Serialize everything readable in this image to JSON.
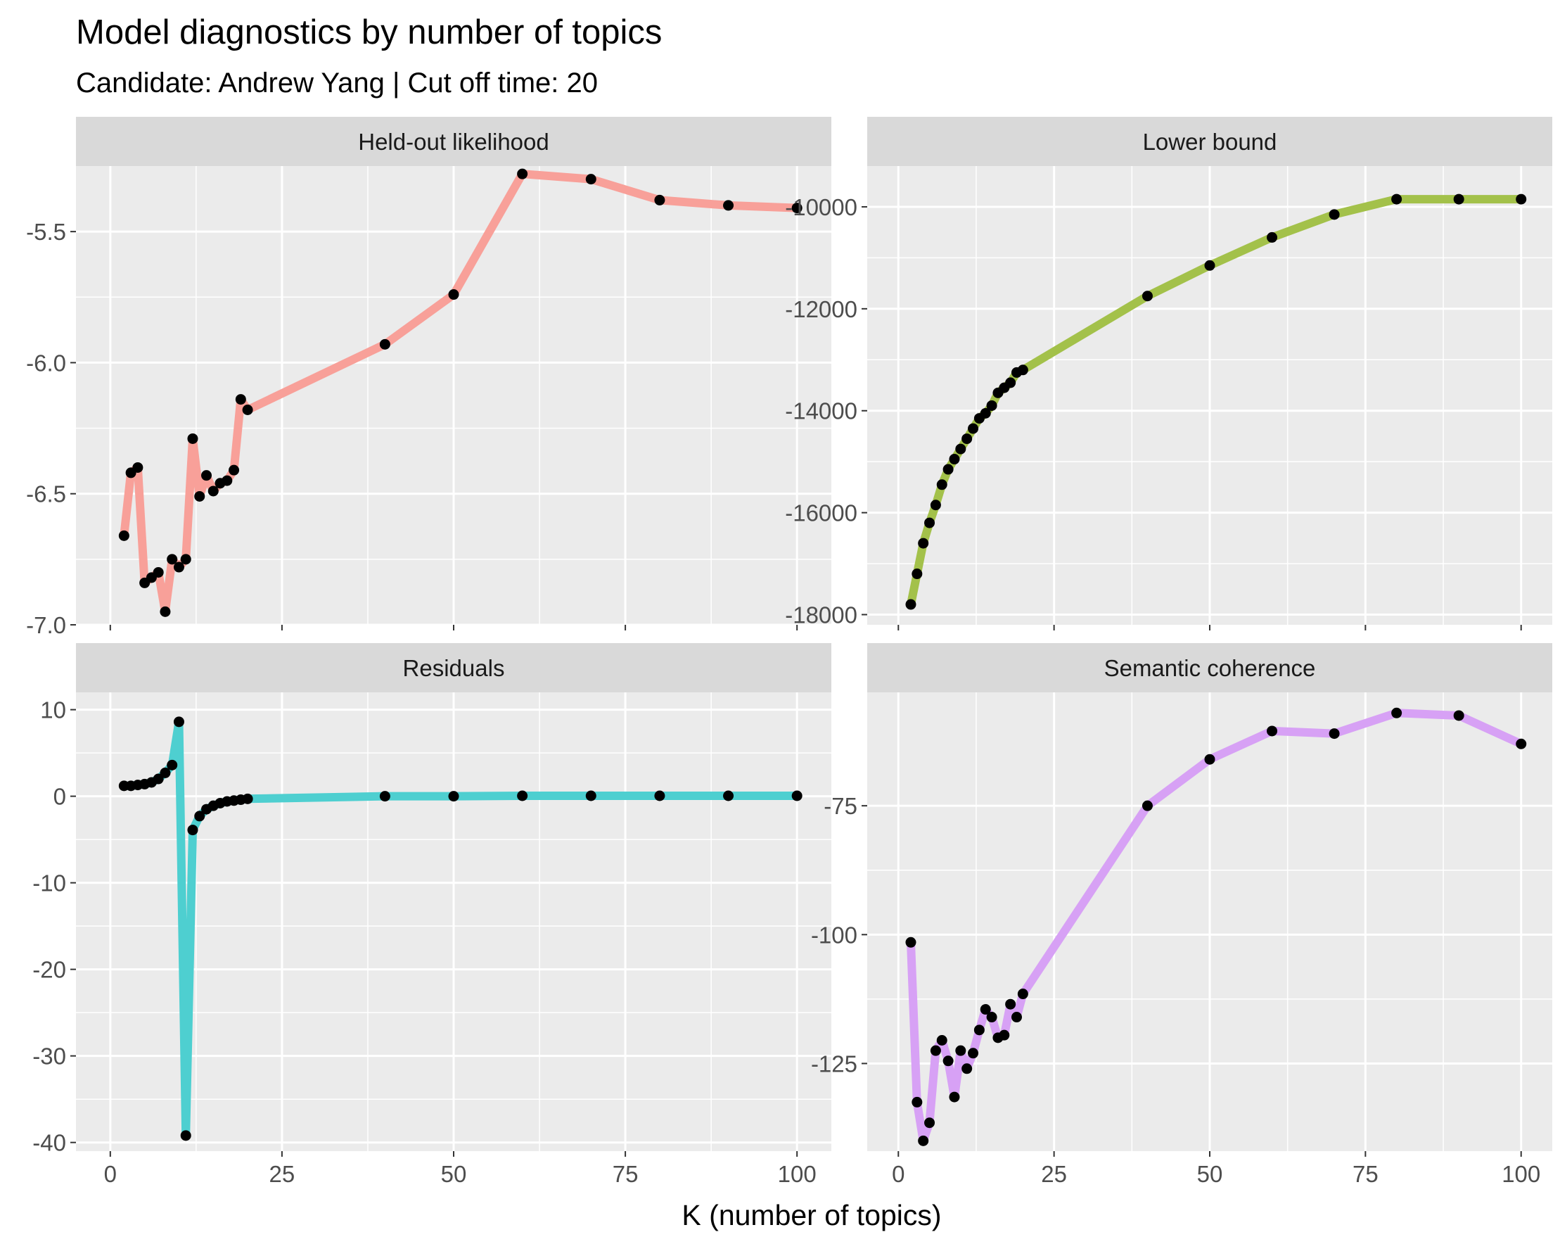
{
  "chart_data": {
    "type": "line",
    "title": "Model diagnostics by number of topics",
    "subtitle": "Candidate: Andrew Yang | Cut off time: 20",
    "xlabel": "K (number of topics)",
    "ylabel": "",
    "facet_grid": true,
    "legend": "none",
    "colors": {
      "background_panel": "#ebebeb",
      "strip": "#d9d9d9",
      "grid": "#ffffff",
      "points": "#000000"
    },
    "x_axis": {
      "lim": [
        0,
        100
      ],
      "ticks": [
        0,
        25,
        50,
        75,
        100
      ]
    },
    "panels": [
      {
        "name": "Held-out likelihood",
        "color": "#f8a099",
        "ylim": [
          -7.0,
          -5.25
        ],
        "yticks": [
          -5.5,
          -6.0,
          -6.5,
          -7.0
        ],
        "ytick_labels": [
          "-5.5",
          "-6.0",
          "-6.5",
          "-7.0"
        ],
        "x": [
          2,
          3,
          4,
          5,
          6,
          7,
          8,
          9,
          10,
          11,
          12,
          13,
          14,
          15,
          16,
          17,
          18,
          19,
          20,
          40,
          50,
          60,
          70,
          80,
          90,
          100
        ],
        "y": [
          -6.66,
          -6.42,
          -6.4,
          -6.84,
          -6.82,
          -6.8,
          -6.95,
          -6.75,
          -6.78,
          -6.75,
          -6.29,
          -6.51,
          -6.43,
          -6.49,
          -6.46,
          -6.45,
          -6.41,
          -6.14,
          -6.18,
          -5.93,
          -5.74,
          -5.28,
          -5.3,
          -5.38,
          -5.4,
          -5.41
        ]
      },
      {
        "name": "Lower bound",
        "color": "#a3c14a",
        "ylim": [
          -18200,
          -9200
        ],
        "yticks": [
          -10000,
          -12000,
          -14000,
          -16000,
          -18000
        ],
        "ytick_labels": [
          "-10000",
          "-12000",
          "-14000",
          "-16000",
          "-18000"
        ],
        "x": [
          2,
          3,
          4,
          5,
          6,
          7,
          8,
          9,
          10,
          11,
          12,
          13,
          14,
          15,
          16,
          17,
          18,
          19,
          20,
          40,
          50,
          60,
          70,
          80,
          90,
          100
        ],
        "y": [
          -17800,
          -17200,
          -16600,
          -16200,
          -15850,
          -15450,
          -15150,
          -14950,
          -14750,
          -14550,
          -14350,
          -14150,
          -14050,
          -13900,
          -13650,
          -13550,
          -13450,
          -13250,
          -13200,
          -11750,
          -11150,
          -10600,
          -10150,
          -9850,
          -9850,
          -9850
        ]
      },
      {
        "name": "Residuals",
        "color": "#4ecfd0",
        "ylim": [
          -41,
          12
        ],
        "yticks": [
          10,
          0,
          -10,
          -20,
          -30,
          -40
        ],
        "ytick_labels": [
          "10",
          "0",
          "-10",
          "-20",
          "-30",
          "-40"
        ],
        "x": [
          2,
          3,
          4,
          5,
          6,
          7,
          8,
          9,
          10,
          11,
          12,
          13,
          14,
          15,
          16,
          17,
          18,
          19,
          20,
          40,
          50,
          60,
          70,
          80,
          90,
          100
        ],
        "y": [
          1.2,
          1.2,
          1.3,
          1.4,
          1.6,
          2.0,
          2.7,
          3.6,
          8.6,
          -39.2,
          -3.9,
          -2.3,
          -1.5,
          -1.1,
          -0.8,
          -0.6,
          -0.5,
          -0.4,
          -0.3,
          0.0,
          0.0,
          0.05,
          0.05,
          0.05,
          0.05,
          0.05
        ]
      },
      {
        "name": "Semantic coherence",
        "color": "#d7a1f5",
        "ylim": [
          -142,
          -53
        ],
        "yticks": [
          -75,
          -100,
          -125
        ],
        "ytick_labels": [
          "-75",
          "-100",
          "-125"
        ],
        "x": [
          2,
          3,
          4,
          5,
          6,
          7,
          8,
          9,
          10,
          11,
          12,
          13,
          14,
          15,
          16,
          17,
          18,
          19,
          20,
          40,
          50,
          60,
          70,
          80,
          90,
          100
        ],
        "y": [
          -101.5,
          -132.5,
          -140.0,
          -136.5,
          -122.5,
          -120.5,
          -124.5,
          -131.5,
          -122.5,
          -126.0,
          -123.0,
          -118.5,
          -114.5,
          -116.0,
          -120.0,
          -119.5,
          -113.5,
          -116.0,
          -111.5,
          -75.0,
          -66.0,
          -60.5,
          -61.0,
          -57.0,
          -57.5,
          -63.0
        ]
      }
    ]
  }
}
